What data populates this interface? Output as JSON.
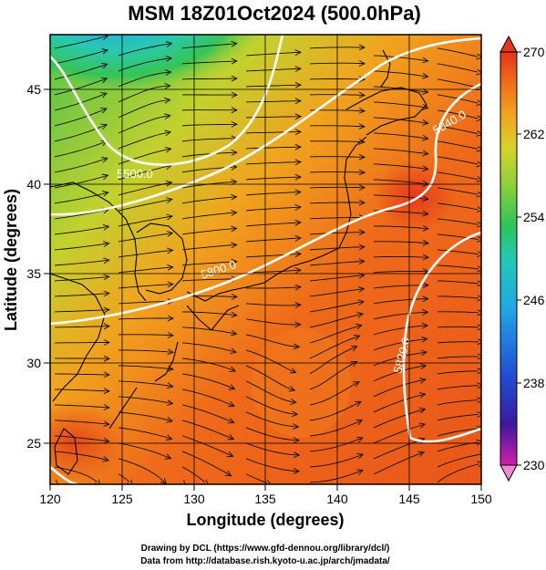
{
  "title": "MSM 18Z01Oct2024 (500.0hPa)",
  "x_axis": {
    "label": "Longitude (degrees)",
    "ticks": [
      "120",
      "125",
      "130",
      "135",
      "140",
      "145",
      "150"
    ]
  },
  "y_axis": {
    "label": "Latitude  (degrees)",
    "ticks": [
      "25",
      "30",
      "35",
      "40",
      "45"
    ]
  },
  "colorbar": {
    "ticks": [
      "270",
      "262",
      "254",
      "246",
      "238",
      "230"
    ],
    "min": 230,
    "max": 270,
    "colors": [
      "#cc22aa",
      "#2a1b9a",
      "#1f4fd6",
      "#22a8e6",
      "#22c9b3",
      "#2ec45a",
      "#8fd13a",
      "#d8d22a",
      "#f2a21e",
      "#ef6a1a",
      "#e33a1a"
    ]
  },
  "map": {
    "lon_range": [
      120,
      150
    ],
    "lat_range": [
      22.5,
      47.6
    ],
    "contour_labels": [
      "5500.0",
      "5800.0",
      "5820.0",
      "5840.0"
    ]
  },
  "credits": [
    "Drawing by DCL (https://www.gfd-dennou.org/library/dcl/)",
    "Data from http://database.rish.kyoto-u.ac.jp/arch/jmadata/"
  ]
}
